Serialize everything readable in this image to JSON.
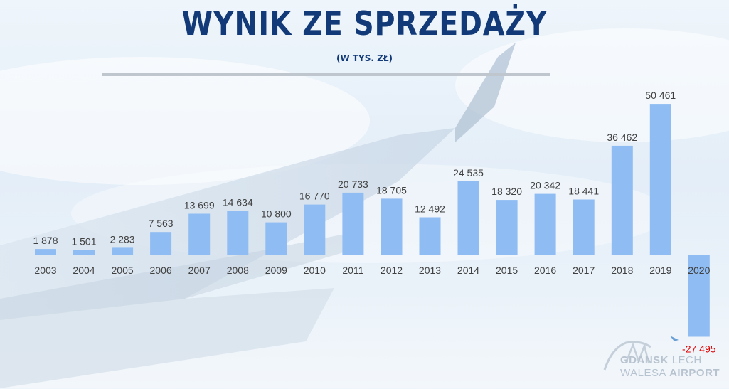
{
  "header": {
    "title": "WYNIK ZE SPRZEDAŻY",
    "subtitle": "(W TYS. ZŁ)"
  },
  "logo": {
    "line1_a": "GDANSK",
    "line1_b": "LECH",
    "line2_a": "WALESA",
    "line2_b": "AIRPORT",
    "icon": "plane-icon"
  },
  "colors": {
    "bar": "#8fbcf3",
    "label": "#404040",
    "negative_label": "#e00000",
    "title": "#123a78"
  },
  "chart_data": {
    "type": "bar",
    "title": "WYNIK ZE SPRZEDAŻY",
    "subtitle": "(W TYS. ZŁ)",
    "categories": [
      "2003",
      "2004",
      "2005",
      "2006",
      "2007",
      "2008",
      "2009",
      "2010",
      "2011",
      "2012",
      "2013",
      "2014",
      "2015",
      "2016",
      "2017",
      "2018",
      "2019",
      "2020"
    ],
    "values": [
      1878,
      1501,
      2283,
      7563,
      13699,
      14634,
      10800,
      16770,
      20733,
      18705,
      12492,
      24535,
      18320,
      20342,
      18441,
      36462,
      50461,
      -27495
    ],
    "value_labels": [
      "1 878",
      "1 501",
      "2 283",
      "7 563",
      "13 699",
      "14 634",
      "10 800",
      "16 770",
      "20 733",
      "18 705",
      "12 492",
      "24 535",
      "18 320",
      "20 342",
      "18 441",
      "36 462",
      "50 461",
      "-27 495"
    ],
    "xlabel": "",
    "ylabel": "",
    "grid": false,
    "legend": "none"
  }
}
